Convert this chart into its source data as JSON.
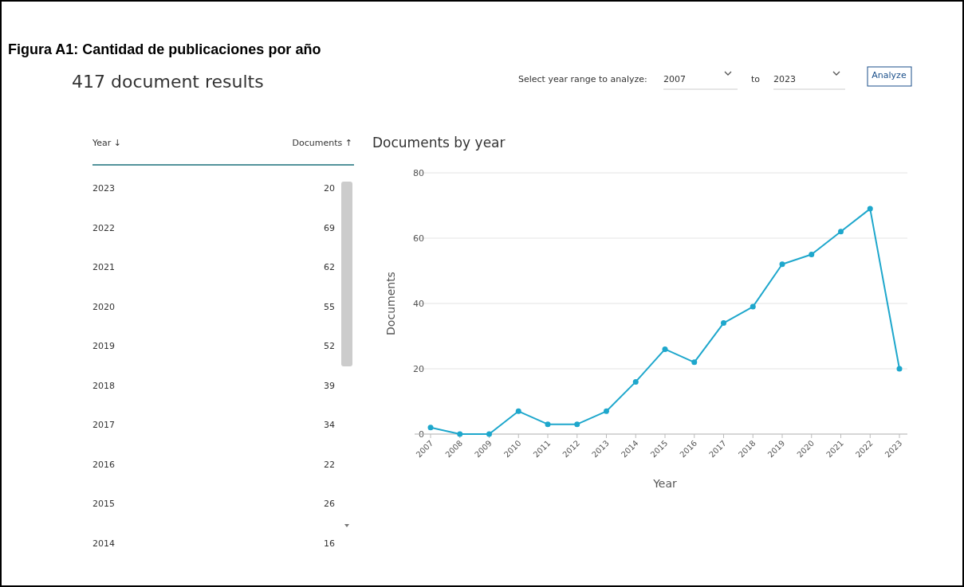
{
  "chart_data": {
    "type": "line",
    "title": "Figura A1: Cantidad de publicaciones por año",
    "subtitle": "Documents by year",
    "xlabel": "Year",
    "ylabel": "Documents",
    "annotations": [
      "417 document results",
      "Select year range to analyze:",
      "2007",
      "to",
      "2023",
      "Analyze",
      "Year ↓",
      "Documents ↑"
    ],
    "categories": [
      "2007",
      "2008",
      "2009",
      "2010",
      "2011",
      "2012",
      "2013",
      "2014",
      "2015",
      "2016",
      "2017",
      "2018",
      "2019",
      "2020",
      "2021",
      "2022",
      "2023"
    ],
    "series": [
      {
        "color": "#1ea7cc",
        "values": [
          2,
          0,
          0,
          7,
          3,
          3,
          7,
          16,
          26,
          22,
          34,
          39,
          52,
          55,
          62,
          69,
          20
        ]
      }
    ],
    "value_labels": [
      null,
      null,
      null,
      null,
      null,
      null,
      null,
      "16",
      "26",
      "22",
      "34",
      "39",
      "52",
      "55",
      "62",
      "69",
      "20"
    ],
    "ylim": [
      0,
      80
    ],
    "yticks": [
      0,
      20,
      40,
      60,
      80
    ],
    "grid": "y",
    "marker": "circle",
    "line_style": "solid"
  }
}
